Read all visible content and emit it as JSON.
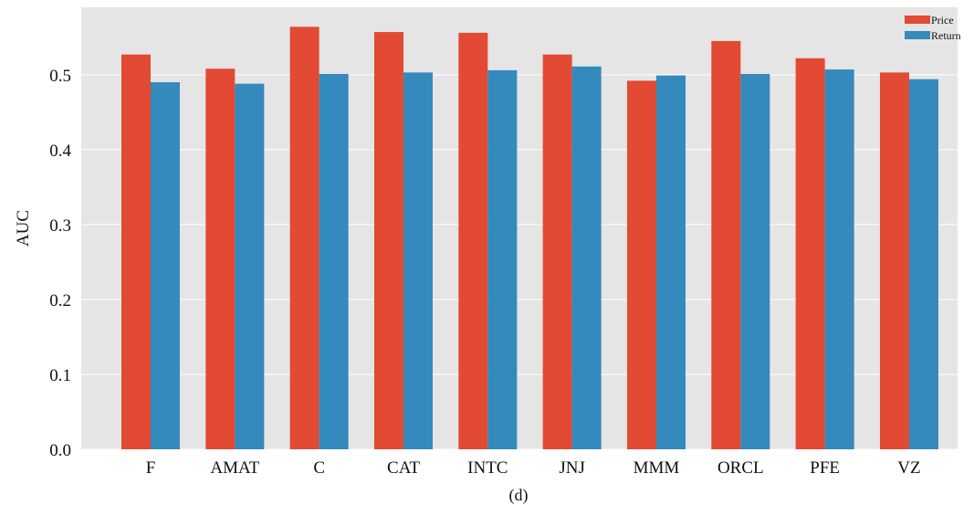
{
  "chart_data": {
    "type": "bar",
    "title": "",
    "xlabel": "",
    "ylabel": "AUC",
    "caption": "(d)",
    "categories": [
      "F",
      "AMAT",
      "C",
      "CAT",
      "INTC",
      "JNJ",
      "MMM",
      "ORCL",
      "PFE",
      "VZ"
    ],
    "series": [
      {
        "name": "Price",
        "color": "#E24A33",
        "values": [
          0.527,
          0.508,
          0.564,
          0.557,
          0.556,
          0.527,
          0.492,
          0.545,
          0.522,
          0.503
        ]
      },
      {
        "name": "Return",
        "color": "#348ABD",
        "values": [
          0.49,
          0.488,
          0.501,
          0.503,
          0.506,
          0.511,
          0.499,
          0.501,
          0.507,
          0.494
        ]
      }
    ],
    "ylim": [
      0,
      0.59
    ],
    "yticks": [
      "0.0",
      "0.1",
      "0.2",
      "0.3",
      "0.4",
      "0.5"
    ],
    "grid": true,
    "legend_position": "top-right",
    "background_color": "#E5E5E5",
    "grid_color": "#FFFFFF"
  }
}
